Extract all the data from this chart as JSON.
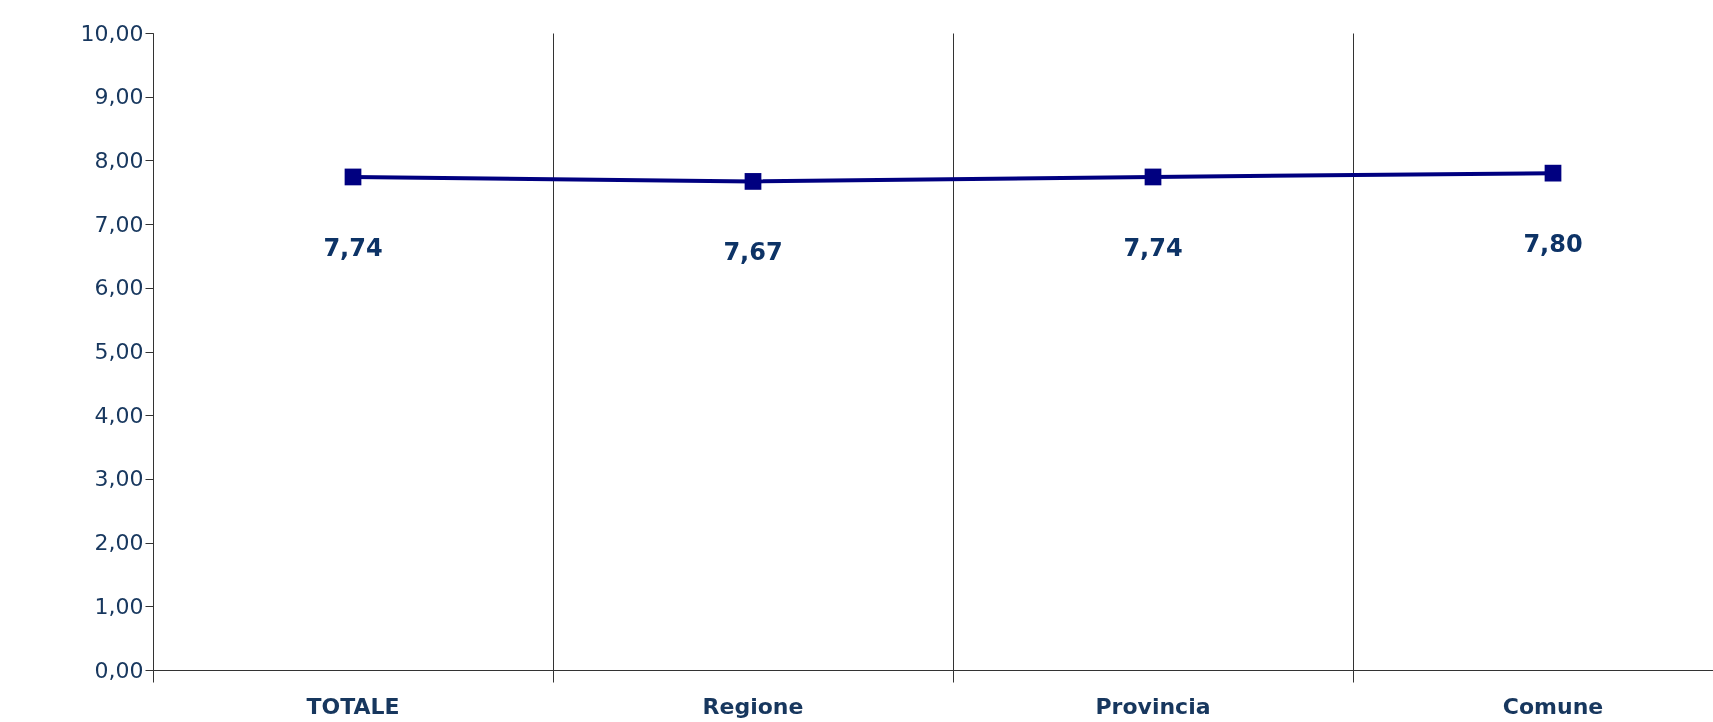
{
  "chart_data": {
    "type": "line",
    "categories": [
      "TOTALE",
      "Regione",
      "Provincia",
      "Comune"
    ],
    "series": [
      {
        "color": "#000080",
        "values": [
          7.74,
          7.67,
          7.74,
          7.8
        ],
        "value_labels": [
          "7,74",
          "7,67",
          "7,74",
          "7,80"
        ]
      }
    ],
    "ylim": [
      0,
      10
    ],
    "yticks": [
      {
        "value": 0,
        "label": "0,00"
      },
      {
        "value": 1,
        "label": "1,00"
      },
      {
        "value": 2,
        "label": "2,00"
      },
      {
        "value": 3,
        "label": "3,00"
      },
      {
        "value": 4,
        "label": "4,00"
      },
      {
        "value": 5,
        "label": "5,00"
      },
      {
        "value": 6,
        "label": "6,00"
      },
      {
        "value": 7,
        "label": "7,00"
      },
      {
        "value": 8,
        "label": "8,00"
      },
      {
        "value": 9,
        "label": "9,00"
      },
      {
        "value": 10,
        "label": "10,00"
      }
    ],
    "grid": "x",
    "marker": "square",
    "line_style": "solid"
  }
}
